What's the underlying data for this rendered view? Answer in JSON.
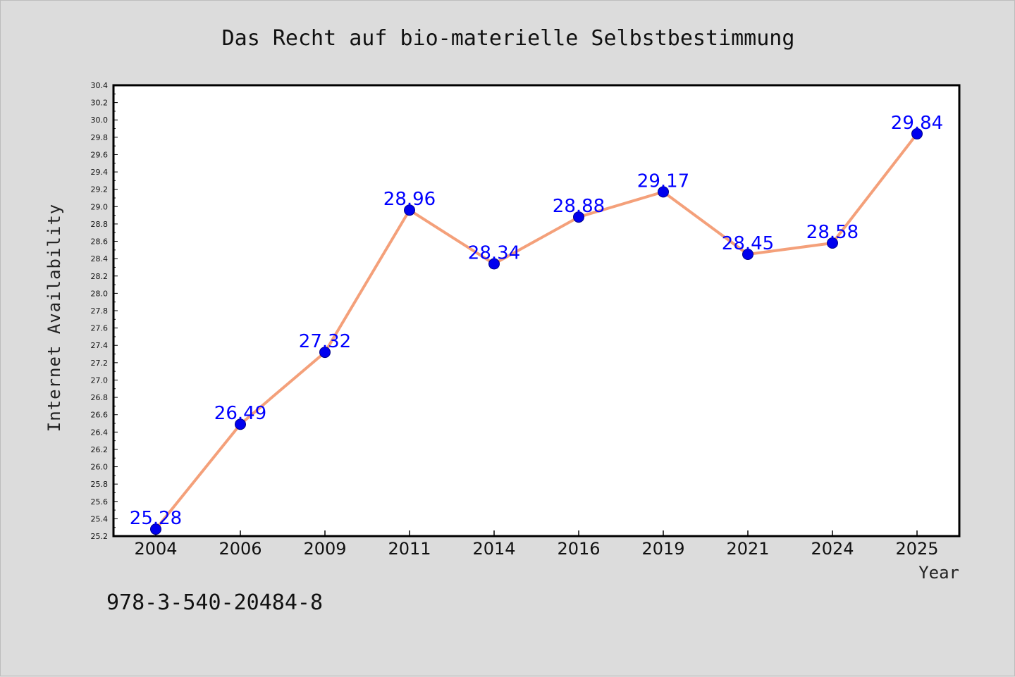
{
  "chart_data": {
    "type": "line",
    "title": "Das Recht auf bio-materielle Selbstbestimmung",
    "xlabel": "Year",
    "ylabel": "Internet Availability",
    "categories": [
      "2004",
      "2006",
      "2009",
      "2011",
      "2014",
      "2016",
      "2019",
      "2021",
      "2024",
      "2025"
    ],
    "series": [
      {
        "values": [
          25.28,
          26.49,
          27.32,
          28.96,
          28.34,
          28.88,
          29.17,
          28.45,
          28.58,
          29.84
        ],
        "data_labels": [
          "25.28",
          "26.49",
          "27.32",
          "28.96",
          "28.34",
          "28.88",
          "29.17",
          "28.45",
          "28.58",
          "29.84"
        ]
      }
    ],
    "ylim": [
      25.2,
      30.4
    ],
    "yticks": [
      "25.2",
      "25.4",
      "25.6",
      "25.8",
      "26.0",
      "26.2",
      "26.4",
      "26.6",
      "26.8",
      "27.0",
      "27.2",
      "27.4",
      "27.6",
      "27.8",
      "28.0",
      "28.2",
      "28.4",
      "28.6",
      "28.8",
      "29.0",
      "29.2",
      "29.4",
      "29.6",
      "29.8",
      "30.0",
      "30.2",
      "30.4"
    ],
    "grid": false,
    "legend": "none",
    "colors": {
      "line": "#f4a07a",
      "marker": "#0000ee",
      "data_label": "#0000ff",
      "background": "#dcdcdc",
      "plot_background": "#ffffff"
    }
  },
  "footer": {
    "isbn": "978-3-540-20484-8"
  }
}
